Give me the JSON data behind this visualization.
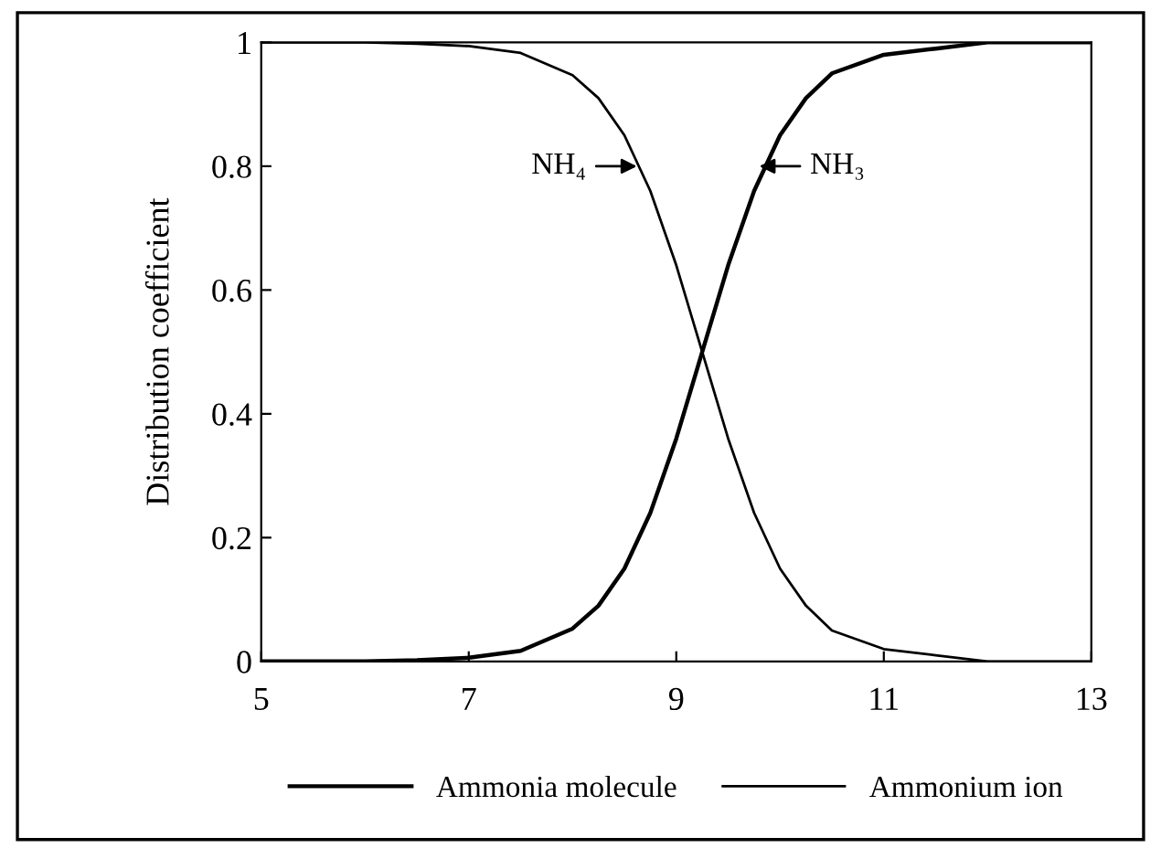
{
  "chart_data": {
    "type": "line",
    "ylabel": "Distribution coefficient",
    "xlim": [
      5,
      13
    ],
    "xticks": [
      5,
      7,
      9,
      11,
      13
    ],
    "ylim": [
      0,
      1
    ],
    "yticks": [
      0,
      0.2,
      0.4,
      0.6,
      0.8,
      1
    ],
    "x": [
      5,
      6,
      6.5,
      7,
      7.5,
      8,
      8.25,
      8.5,
      8.75,
      9,
      9.25,
      9.5,
      9.75,
      10,
      10.25,
      10.5,
      11,
      11.5,
      12,
      13
    ],
    "series": [
      {
        "name": "Ammonia molecule",
        "color": "#000000",
        "values": [
          0,
          0,
          0.002,
          0.006,
          0.017,
          0.053,
          0.09,
          0.15,
          0.24,
          0.36,
          0.5,
          0.64,
          0.76,
          0.85,
          0.91,
          0.95,
          0.98,
          0.99,
          1,
          1
        ]
      },
      {
        "name": "Ammonium ion",
        "color": "#000000",
        "values": [
          1,
          1,
          0.998,
          0.994,
          0.983,
          0.947,
          0.91,
          0.85,
          0.76,
          0.64,
          0.5,
          0.36,
          0.24,
          0.15,
          0.09,
          0.05,
          0.02,
          0.01,
          0,
          0
        ]
      }
    ],
    "annotations": [
      {
        "text": "NH₄",
        "x": 8.62,
        "y": 0.8
      },
      {
        "text": "NH₃",
        "x": 9.8,
        "y": 0.8
      }
    ],
    "legend": "bottom",
    "grid": false,
    "marker": "none",
    "line_style": "solid"
  }
}
